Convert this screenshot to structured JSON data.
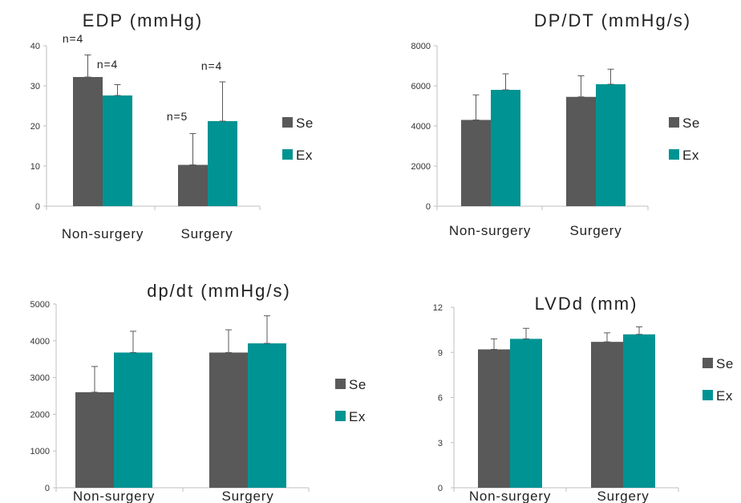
{
  "colors": {
    "Se": "#595959",
    "Ex": "#009393"
  },
  "chart_data": [
    {
      "type": "bar",
      "title": "EDP (mmHg)",
      "categories": [
        "Non-surgery",
        "Surgery"
      ],
      "series": [
        {
          "name": "Se",
          "values": [
            32.2,
            10.3
          ],
          "errors": [
            5.5,
            7.8
          ]
        },
        {
          "name": "Ex",
          "values": [
            27.6,
            21.2
          ],
          "errors": [
            2.7,
            9.8
          ]
        }
      ],
      "ylim": [
        0,
        40
      ],
      "yticks": [
        "0",
        "10",
        "20",
        "30",
        "40"
      ],
      "annotations": [
        "n=4",
        "n=4",
        "n=5",
        "n=4"
      ],
      "legend_position": "right"
    },
    {
      "type": "bar",
      "title": "DP/DT (mmHg/s)",
      "categories": [
        "Non-surgery",
        "Surgery"
      ],
      "series": [
        {
          "name": "Se",
          "values": [
            4300,
            5450
          ],
          "errors": [
            1250,
            1050
          ]
        },
        {
          "name": "Ex",
          "values": [
            5800,
            6080
          ],
          "errors": [
            800,
            750
          ]
        }
      ],
      "ylim": [
        0,
        8000
      ],
      "yticks": [
        "0",
        "2000",
        "4000",
        "6000",
        "8000"
      ],
      "legend_position": "right"
    },
    {
      "type": "bar",
      "title": "dp/dt (mmHg/s)",
      "categories": [
        "Non-surgery",
        "Surgery"
      ],
      "series": [
        {
          "name": "Se",
          "values": [
            2600,
            3680
          ],
          "errors": [
            700,
            620
          ]
        },
        {
          "name": "Ex",
          "values": [
            3680,
            3930
          ],
          "errors": [
            580,
            750
          ]
        }
      ],
      "ylim": [
        0,
        5000
      ],
      "yticks": [
        "0",
        "1000",
        "2000",
        "3000",
        "4000",
        "5000"
      ],
      "legend_position": "right"
    },
    {
      "type": "bar",
      "title": "LVDd (mm)",
      "categories": [
        "Non-surgery",
        "Surgery"
      ],
      "series": [
        {
          "name": "Se",
          "values": [
            9.2,
            9.7
          ],
          "errors": [
            0.7,
            0.6
          ]
        },
        {
          "name": "Ex",
          "values": [
            9.9,
            10.2
          ],
          "errors": [
            0.7,
            0.5
          ]
        }
      ],
      "ylim": [
        0,
        12
      ],
      "yticks": [
        "0",
        "3",
        "6",
        "9",
        "12"
      ],
      "legend_position": "right"
    }
  ]
}
